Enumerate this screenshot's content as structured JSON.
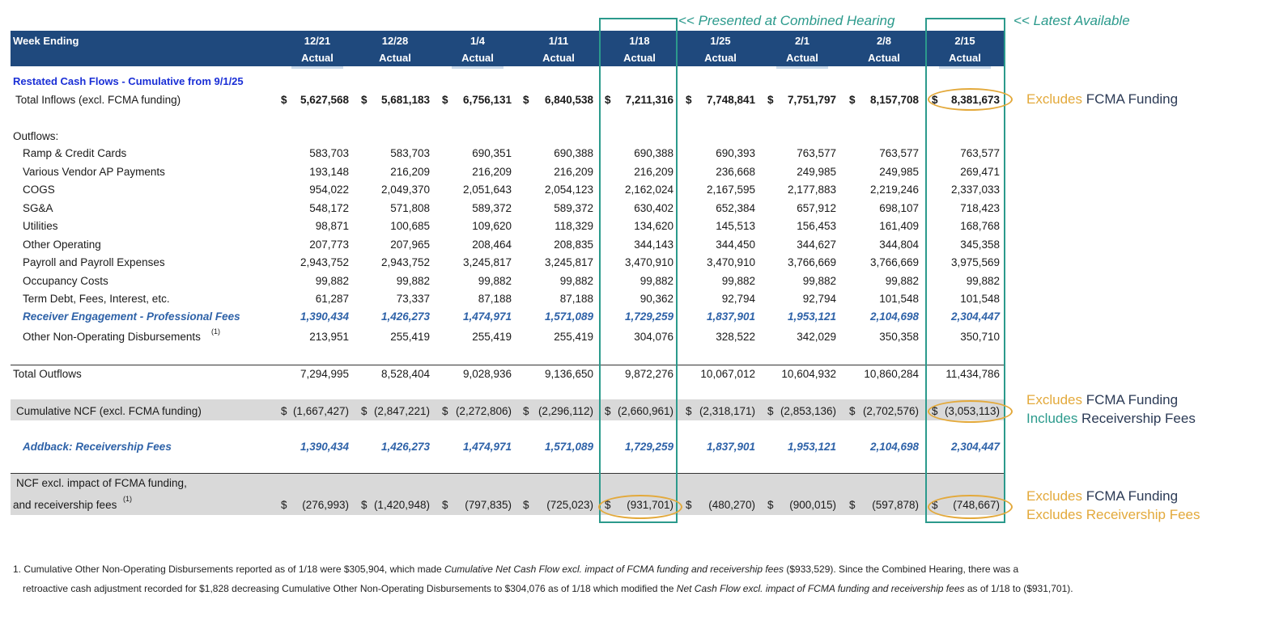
{
  "header": {
    "week_label": "Week Ending",
    "columns": [
      {
        "date": "12/21",
        "status": "Actual"
      },
      {
        "date": "12/28",
        "status": "Actual"
      },
      {
        "date": "1/4",
        "status": "Actual"
      },
      {
        "date": "1/11",
        "status": "Actual"
      },
      {
        "date": "1/18",
        "status": "Actual"
      },
      {
        "date": "1/25",
        "status": "Actual"
      },
      {
        "date": "2/1",
        "status": "Actual"
      },
      {
        "date": "2/8",
        "status": "Actual"
      },
      {
        "date": "2/15",
        "status": "Actual"
      }
    ]
  },
  "annotations": {
    "presented": "<< Presented at Combined Hearing",
    "latest": "<< Latest Available",
    "inflow_note": {
      "a": "Excludes",
      "b": " FCMA Funding"
    },
    "ncf_note1": {
      "a": "Excludes",
      "b": " FCMA Funding"
    },
    "ncf_note2": {
      "a": "Includes",
      "b": " Receivership Fees"
    },
    "final_note1": {
      "a": "Excludes",
      "b": " FCMA Funding"
    },
    "final_note2": {
      "a": "Excludes",
      "b": " Receivership Fees"
    }
  },
  "section_title": "Restated Cash Flows - Cumulative from 9/1/25",
  "inflows": {
    "label": "Total Inflows (excl. FCMA funding)",
    "currency": "$",
    "values": [
      "5,627,568",
      "5,681,183",
      "6,756,131",
      "6,840,538",
      "7,211,316",
      "7,748,841",
      "7,751,797",
      "8,157,708",
      "8,381,673"
    ]
  },
  "outflows_label": "Outflows:",
  "outflows": [
    {
      "label": "Ramp & Credit Cards",
      "values": [
        "583,703",
        "583,703",
        "690,351",
        "690,388",
        "690,388",
        "690,393",
        "763,577",
        "763,577",
        "763,577"
      ]
    },
    {
      "label": "Various Vendor AP Payments",
      "values": [
        "193,148",
        "216,209",
        "216,209",
        "216,209",
        "216,209",
        "236,668",
        "249,985",
        "249,985",
        "269,471"
      ]
    },
    {
      "label": "COGS",
      "values": [
        "954,022",
        "2,049,370",
        "2,051,643",
        "2,054,123",
        "2,162,024",
        "2,167,595",
        "2,177,883",
        "2,219,246",
        "2,337,033"
      ]
    },
    {
      "label": "SG&A",
      "values": [
        "548,172",
        "571,808",
        "589,372",
        "589,372",
        "630,402",
        "652,384",
        "657,912",
        "698,107",
        "718,423"
      ]
    },
    {
      "label": "Utilities",
      "values": [
        "98,871",
        "100,685",
        "109,620",
        "118,329",
        "134,620",
        "145,513",
        "156,453",
        "161,409",
        "168,768"
      ]
    },
    {
      "label": "Other Operating",
      "values": [
        "207,773",
        "207,965",
        "208,464",
        "208,835",
        "344,143",
        "344,450",
        "344,627",
        "344,804",
        "345,358"
      ]
    },
    {
      "label": "Payroll and Payroll Expenses",
      "values": [
        "2,943,752",
        "2,943,752",
        "3,245,817",
        "3,245,817",
        "3,470,910",
        "3,470,910",
        "3,766,669",
        "3,766,669",
        "3,975,569"
      ]
    },
    {
      "label": "Occupancy Costs",
      "values": [
        "99,882",
        "99,882",
        "99,882",
        "99,882",
        "99,882",
        "99,882",
        "99,882",
        "99,882",
        "99,882"
      ]
    },
    {
      "label": "Term Debt, Fees, Interest, etc.",
      "values": [
        "61,287",
        "73,337",
        "87,188",
        "87,188",
        "90,362",
        "92,794",
        "92,794",
        "101,548",
        "101,548"
      ]
    },
    {
      "label": "Receiver Engagement - Professional Fees",
      "values": [
        "1,390,434",
        "1,426,273",
        "1,474,971",
        "1,571,089",
        "1,729,259",
        "1,837,901",
        "1,953,121",
        "2,104,698",
        "2,304,447"
      ]
    },
    {
      "label": "Other Non-Operating Disbursements",
      "sup": "(1)",
      "values": [
        "213,951",
        "255,419",
        "255,419",
        "255,419",
        "304,076",
        "328,522",
        "342,029",
        "350,358",
        "350,710"
      ]
    }
  ],
  "total_outflows": {
    "label": "Total Outflows",
    "values": [
      "7,294,995",
      "8,528,404",
      "9,028,936",
      "9,136,650",
      "9,872,276",
      "10,067,012",
      "10,604,932",
      "10,860,284",
      "11,434,786"
    ]
  },
  "cum_ncf": {
    "label": "Cumulative NCF (excl. FCMA funding)",
    "currency": "$",
    "values": [
      "(1,667,427)",
      "(2,847,221)",
      "(2,272,806)",
      "(2,296,112)",
      "(2,660,961)",
      "(2,318,171)",
      "(2,853,136)",
      "(2,702,576)",
      "(3,053,113)"
    ]
  },
  "addback": {
    "label": "Addback: Receivership Fees",
    "values": [
      "1,390,434",
      "1,426,273",
      "1,474,971",
      "1,571,089",
      "1,729,259",
      "1,837,901",
      "1,953,121",
      "2,104,698",
      "2,304,447"
    ]
  },
  "ncf_excl": {
    "label1": "NCF excl. impact of FCMA funding,",
    "label2": "and receivership fees",
    "sup": "(1)",
    "currency": "$",
    "values": [
      "(276,993)",
      "(1,420,948)",
      "(797,835)",
      "(725,023)",
      "(931,701)",
      "(480,270)",
      "(900,015)",
      "(597,878)",
      "(748,667)"
    ]
  },
  "footnote": {
    "line1a": "1.  Cumulative Other Non-Operating Disbursements reported as of 1/18 were $305,904, which made ",
    "line1b": "Cumulative Net Cash Flow excl. impact of FCMA funding and receivership fees",
    "line1c": "  ($933,529). Since the Combined Hearing, there was a",
    "line2a": "retroactive cash adjustment recorded for $1,828 decreasing Cumulative Other Non-Operating Disbursements to $304,076 as of 1/18 which modified the ",
    "line2b": "Net Cash Flow excl. impact of FCMA funding and receivership fees",
    "line2c": "  as of 1/18 to ($931,701)."
  },
  "colors": {
    "header_bg": "#1f497d",
    "teal": "#2b9a8c",
    "gold": "#e3a93b",
    "blue_text": "#2e62a8",
    "section_blue": "#1a2fd6",
    "band_gray": "#d9d9d9"
  }
}
